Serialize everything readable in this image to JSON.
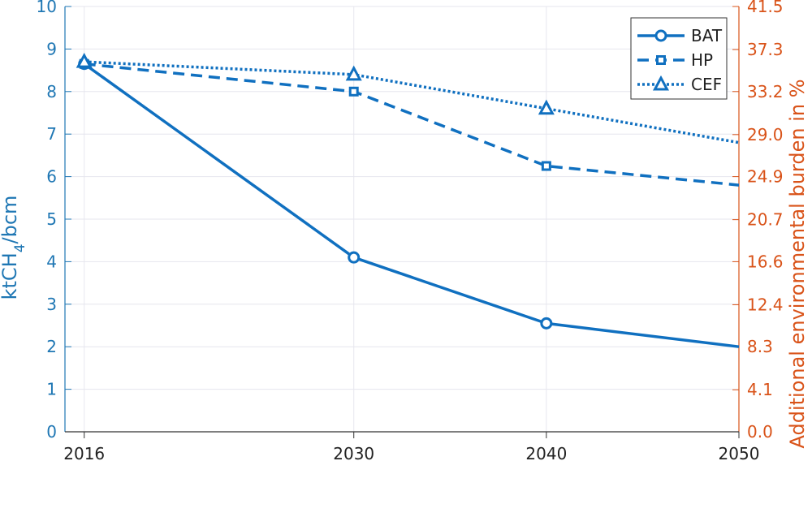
{
  "colors": {
    "series": "#1070c0",
    "left_axis": "#1f77b4",
    "right_axis": "#d95319",
    "grid": "#e6e6ee",
    "x_axis": "#333333"
  },
  "chart_data": {
    "type": "line",
    "x": [
      2016,
      2030,
      2040,
      2050
    ],
    "xlim": [
      2015,
      2050
    ],
    "x_ticks": [
      "2016",
      "2030",
      "2040",
      "2050"
    ],
    "ylim": [
      0,
      10
    ],
    "y_ticks": [
      "0",
      "1",
      "2",
      "3",
      "4",
      "5",
      "6",
      "7",
      "8",
      "9",
      "10"
    ],
    "y2lim": [
      0,
      41.5
    ],
    "y2_ticks": [
      "0.0",
      "4.1",
      "8.3",
      "12.4",
      "16.6",
      "20.7",
      "24.9",
      "29.0",
      "33.2",
      "37.3",
      "41.5"
    ],
    "ylabel": {
      "main": "ktCH",
      "sub": "4",
      "tail": "/bcm"
    },
    "y2label": "Additional environmental burden in %",
    "grid": true,
    "legend_position": "top-right",
    "series": [
      {
        "name": "BAT",
        "values": [
          8.65,
          4.1,
          2.55,
          2.0
        ],
        "style": "solid",
        "marker": "circle"
      },
      {
        "name": "HP",
        "values": [
          8.65,
          8.0,
          6.25,
          5.8
        ],
        "style": "dashed",
        "marker": "square"
      },
      {
        "name": "CEF",
        "values": [
          8.7,
          8.4,
          7.6,
          6.8
        ],
        "style": "dotted",
        "marker": "triangle"
      }
    ]
  }
}
